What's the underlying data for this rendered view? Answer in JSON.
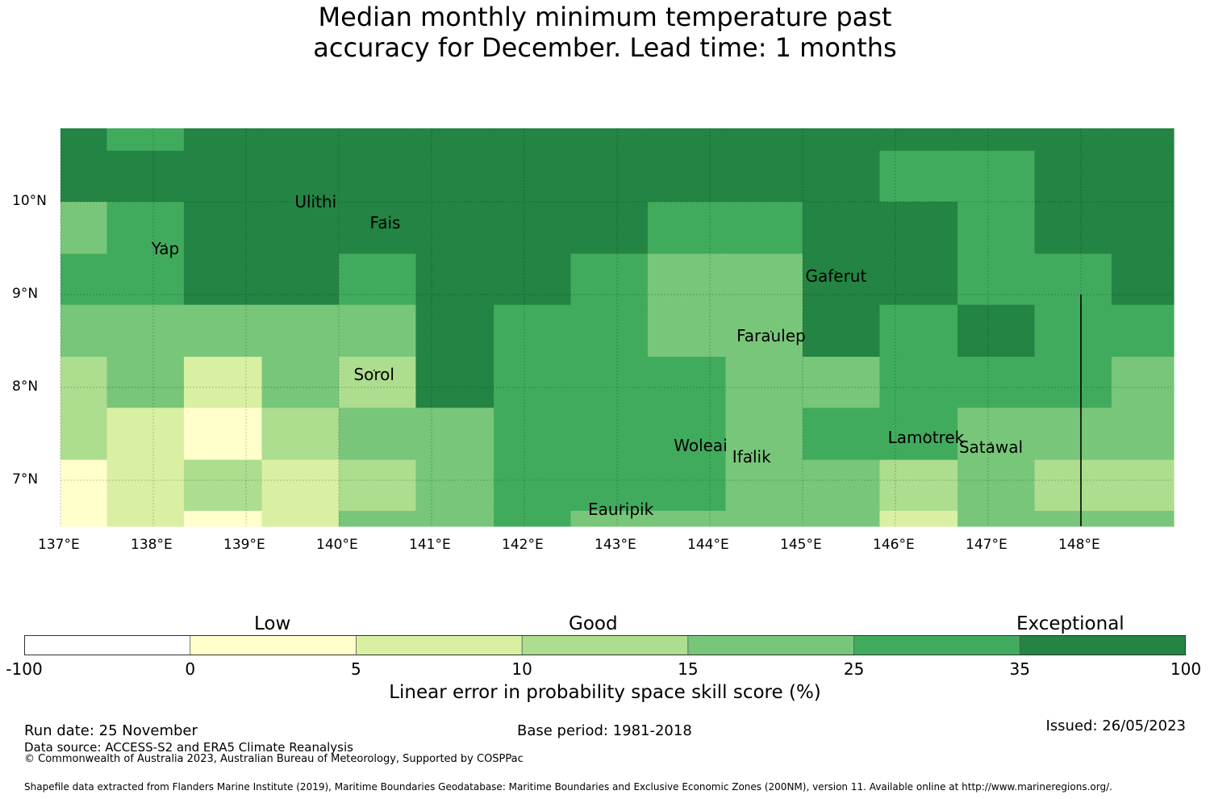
{
  "title": {
    "line1": "Median monthly minimum temperature past",
    "line2": "accuracy for December. Lead time: 1 months"
  },
  "map": {
    "lon_range": [
      137.0,
      149.0
    ],
    "lat_range": [
      6.5,
      10.8
    ],
    "lon_ticks": [
      "137°E",
      "138°E",
      "139°E",
      "140°E",
      "141°E",
      "142°E",
      "143°E",
      "144°E",
      "145°E",
      "146°E",
      "147°E",
      "148°E"
    ],
    "lat_ticks": [
      "10°N",
      "9°N",
      "8°N",
      "7°N"
    ],
    "places": [
      {
        "name": "Ulithi",
        "lon": 139.75,
        "lat": 10.0
      },
      {
        "name": "Fais",
        "lon": 140.5,
        "lat": 9.77
      },
      {
        "name": "Yap",
        "lon": 138.13,
        "lat": 9.5
      },
      {
        "name": "Gaferut",
        "lon": 145.36,
        "lat": 9.2
      },
      {
        "name": "Faraulep",
        "lon": 144.66,
        "lat": 8.56
      },
      {
        "name": "Sorol",
        "lon": 140.38,
        "lat": 8.14
      },
      {
        "name": "Woleai",
        "lon": 143.9,
        "lat": 7.37
      },
      {
        "name": "Ifalik",
        "lon": 144.45,
        "lat": 7.25
      },
      {
        "name": "Lamotrek",
        "lon": 146.33,
        "lat": 7.46
      },
      {
        "name": "Satawal",
        "lon": 147.03,
        "lat": 7.36
      },
      {
        "name": "Eauripik",
        "lon": 143.04,
        "lat": 6.69
      }
    ],
    "boundary_line": {
      "lon": 148.0,
      "lat_from": 6.5,
      "lat_to": 9.0
    },
    "cell_lon_edges": [
      137.0,
      137.5,
      138.33,
      139.17,
      140.0,
      140.83,
      141.67,
      142.5,
      143.33,
      144.17,
      145.0,
      145.83,
      146.67,
      147.5,
      148.33,
      149.0
    ],
    "cell_lat_edges": [
      10.8,
      10.55,
      10.0,
      9.44,
      8.89,
      8.33,
      7.78,
      7.22,
      6.67,
      6.5
    ],
    "grid_levels": [
      [
        6,
        5,
        6,
        6,
        6,
        6,
        6,
        6,
        6,
        6,
        6,
        6,
        6,
        6,
        6
      ],
      [
        6,
        6,
        6,
        6,
        6,
        6,
        6,
        6,
        6,
        6,
        6,
        5,
        5,
        6,
        6
      ],
      [
        4,
        5,
        6,
        6,
        6,
        6,
        6,
        6,
        5,
        5,
        6,
        6,
        5,
        6,
        6
      ],
      [
        5,
        5,
        6,
        6,
        5,
        6,
        6,
        5,
        4,
        4,
        6,
        6,
        5,
        5,
        6
      ],
      [
        4,
        4,
        4,
        4,
        4,
        6,
        5,
        5,
        4,
        4,
        6,
        5,
        6,
        5,
        5
      ],
      [
        3,
        4,
        2,
        4,
        3,
        6,
        5,
        5,
        5,
        4,
        4,
        5,
        5,
        5,
        4
      ],
      [
        3,
        2,
        1,
        3,
        4,
        4,
        5,
        5,
        5,
        4,
        5,
        5,
        4,
        4,
        4
      ],
      [
        1,
        2,
        3,
        2,
        3,
        4,
        5,
        5,
        5,
        4,
        4,
        3,
        4,
        3,
        3
      ],
      [
        1,
        2,
        1,
        2,
        4,
        4,
        5,
        4,
        4,
        4,
        4,
        2,
        4,
        4,
        4
      ]
    ]
  },
  "colorbar": {
    "categories": [
      "Low",
      "Good",
      "Exceptional"
    ],
    "ticks": [
      "-100",
      "0",
      "5",
      "10",
      "15",
      "25",
      "35",
      "100"
    ],
    "colors": [
      "#ffffff",
      "#ffffcc",
      "#d9f0a3",
      "#addd8e",
      "#78c679",
      "#41ab5d",
      "#238443"
    ],
    "label": "Linear error in probability space skill score (%)"
  },
  "footer": {
    "run_date": "Run date: 25 November",
    "base_period": "Base period: 1981-2018",
    "issued": "Issued: 26/05/2023",
    "data_source": "Data source: ACCESS-S2 and ERA5 Climate Reanalysis",
    "copyright": "© Commonwealth of Australia 2023, Australian Bureau of Meteorology, Supported by COSPPac",
    "shapefile": "Shapefile data extracted from Flanders Marine Institute (2019), Maritime Boundaries Geodatabase: Maritime Boundaries and Exclusive Economic Zones (200NM), version 11. Available online at http://www.marineregions.org/."
  }
}
